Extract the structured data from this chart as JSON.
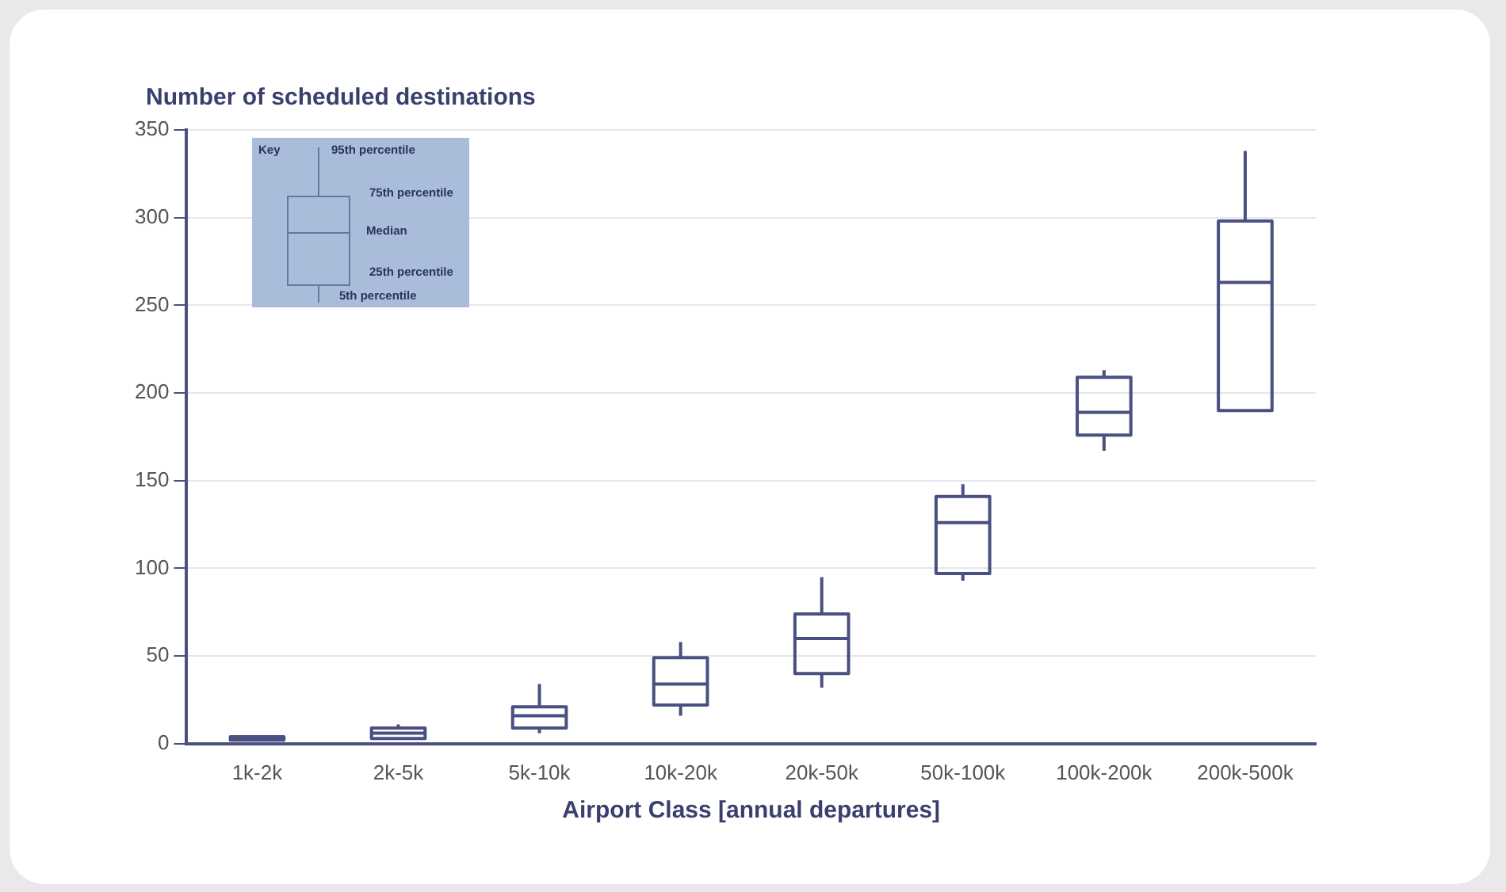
{
  "chart_data": {
    "type": "box",
    "ylabel": "Number of scheduled destinations",
    "xlabel": "Airport Class [annual departures]",
    "categories": [
      "1k-2k",
      "2k-5k",
      "5k-10k",
      "10k-20k",
      "20k-50k",
      "50k-100k",
      "100k-200k",
      "200k-500k"
    ],
    "boxes": [
      {
        "low": 2,
        "q1": 2,
        "median": 3,
        "q3": 4,
        "high": 4
      },
      {
        "low": 2,
        "q1": 3,
        "median": 6,
        "q3": 9,
        "high": 11
      },
      {
        "low": 6,
        "q1": 9,
        "median": 16,
        "q3": 21,
        "high": 34
      },
      {
        "low": 16,
        "q1": 22,
        "median": 34,
        "q3": 49,
        "high": 58
      },
      {
        "low": 32,
        "q1": 40,
        "median": 60,
        "q3": 74,
        "high": 95
      },
      {
        "low": 93,
        "q1": 97,
        "median": 126,
        "q3": 141,
        "high": 148
      },
      {
        "low": 167,
        "q1": 176,
        "median": 189,
        "q3": 209,
        "high": 213
      },
      {
        "low": 190,
        "q1": 190,
        "median": 263,
        "q3": 298,
        "high": 338
      }
    ],
    "color": "#4a5080",
    "ylim": [
      0,
      350
    ],
    "yticks": [
      0,
      50,
      100,
      150,
      200,
      250,
      300,
      350
    ],
    "grid": "y",
    "legend": false,
    "annotations": [
      "Key",
      "95th percentile",
      "75th percentile",
      "Median",
      "25th percentile",
      "5th percentile"
    ]
  }
}
